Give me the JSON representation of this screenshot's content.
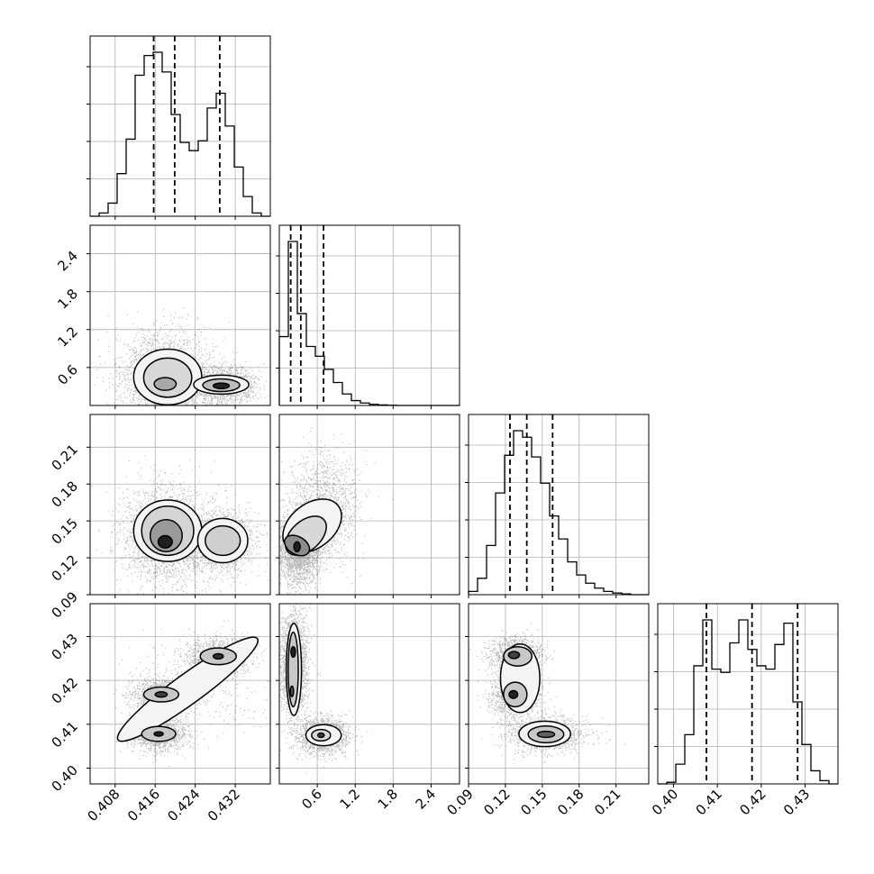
{
  "chart_data": {
    "type": "corner",
    "grid": true,
    "parameters": [
      {
        "range": [
          0.403,
          0.439
        ],
        "ticks": [
          0.408,
          0.416,
          0.424,
          0.432
        ],
        "tick_labels": [
          "0.408",
          "0.416",
          "0.424",
          "0.432"
        ],
        "hist": [
          0,
          0.02,
          0.08,
          0.26,
          0.47,
          0.86,
          0.98,
          1.0,
          0.88,
          0.62,
          0.45,
          0.4,
          0.46,
          0.66,
          0.75,
          0.55,
          0.3,
          0.12,
          0.02,
          0
        ],
        "quantiles": [
          0.4157,
          0.4199,
          0.4289
        ]
      },
      {
        "range": [
          0.0,
          2.85
        ],
        "ticks": [
          0.6,
          1.2,
          1.8,
          2.4
        ],
        "tick_labels": [
          "0.6",
          "1.2",
          "1.8",
          "2.4"
        ],
        "hist": [
          0.42,
          1.0,
          0.56,
          0.36,
          0.3,
          0.22,
          0.14,
          0.07,
          0.03,
          0.015,
          0.007,
          0.003,
          0.001,
          0,
          0,
          0,
          0,
          0,
          0,
          0
        ],
        "quantiles": [
          0.18,
          0.34,
          0.7
        ]
      },
      {
        "range": [
          0.09,
          0.2366
        ],
        "ticks": [
          0.09,
          0.12,
          0.15,
          0.18,
          0.21
        ],
        "tick_labels": [
          "0.09",
          "0.12",
          "0.15",
          "0.18",
          "0.21"
        ],
        "hist": [
          0.02,
          0.1,
          0.3,
          0.62,
          0.85,
          1.0,
          0.96,
          0.84,
          0.68,
          0.48,
          0.34,
          0.2,
          0.12,
          0.07,
          0.04,
          0.02,
          0.01,
          0.005,
          0,
          0
        ],
        "quantiles": [
          0.1237,
          0.1374,
          0.1584
        ]
      },
      {
        "range": [
          0.3964,
          0.4375
        ],
        "ticks": [
          0.4,
          0.41,
          0.42,
          0.43
        ],
        "tick_labels": [
          "0.40",
          "0.41",
          "0.42",
          "0.43"
        ],
        "hist": [
          0,
          0.01,
          0.12,
          0.3,
          0.72,
          1.0,
          0.7,
          0.68,
          0.86,
          1.0,
          0.82,
          0.72,
          0.7,
          0.85,
          0.98,
          0.5,
          0.24,
          0.08,
          0.02,
          0
        ],
        "quantiles": [
          0.4075,
          0.4179,
          0.4283
        ]
      }
    ],
    "pairs": [
      {
        "row": 1,
        "col": 0,
        "blobs": [
          {
            "cx": 0.418,
            "cy": 0.45,
            "sx": 0.0036,
            "sy": 0.3,
            "w": 1.0
          },
          {
            "cx": 0.4295,
            "cy": 0.32,
            "sx": 0.0028,
            "sy": 0.12,
            "w": 0.65
          }
        ],
        "contours": [
          {
            "cx": 0.4185,
            "cy": 0.45,
            "rx": 0.0068,
            "ry": 0.44,
            "fill": "#f4f4f4"
          },
          {
            "cx": 0.4292,
            "cy": 0.33,
            "rx": 0.0055,
            "ry": 0.15,
            "fill": "#f4f4f4"
          },
          {
            "cx": 0.4185,
            "cy": 0.44,
            "rx": 0.0048,
            "ry": 0.31,
            "fill": "#d8d8d8"
          },
          {
            "cx": 0.4292,
            "cy": 0.32,
            "rx": 0.0037,
            "ry": 0.1,
            "fill": "#bdbdbd"
          },
          {
            "cx": 0.418,
            "cy": 0.34,
            "rx": 0.0022,
            "ry": 0.1,
            "fill": "#a8a8a8"
          },
          {
            "cx": 0.4292,
            "cy": 0.31,
            "rx": 0.0016,
            "ry": 0.045,
            "fill": "#202020"
          }
        ]
      },
      {
        "row": 2,
        "col": 0,
        "blobs": [
          {
            "cx": 0.418,
            "cy": 0.138,
            "sx": 0.0036,
            "sy": 0.016,
            "w": 1.0
          },
          {
            "cx": 0.4293,
            "cy": 0.134,
            "sx": 0.0026,
            "sy": 0.011,
            "w": 0.6
          }
        ],
        "contours": [
          {
            "cx": 0.4185,
            "cy": 0.142,
            "rx": 0.0068,
            "ry": 0.025,
            "fill": "#f4f4f4"
          },
          {
            "cx": 0.4295,
            "cy": 0.134,
            "rx": 0.005,
            "ry": 0.018,
            "fill": "#f4f4f4"
          },
          {
            "cx": 0.4185,
            "cy": 0.142,
            "rx": 0.0052,
            "ry": 0.02,
            "fill": "#d4d4d4"
          },
          {
            "cx": 0.4295,
            "cy": 0.134,
            "rx": 0.0035,
            "ry": 0.012,
            "fill": "#cfcfcf"
          },
          {
            "cx": 0.4182,
            "cy": 0.138,
            "rx": 0.0032,
            "ry": 0.013,
            "fill": "#9a9a9a"
          },
          {
            "cx": 0.418,
            "cy": 0.133,
            "rx": 0.0014,
            "ry": 0.005,
            "fill": "#202020"
          }
        ]
      },
      {
        "row": 2,
        "col": 1,
        "blobs": [
          {
            "cx": 0.3,
            "cy": 0.128,
            "sx": 0.14,
            "sy": 0.012,
            "w": 1.0
          },
          {
            "cx": 0.7,
            "cy": 0.16,
            "sx": 0.22,
            "sy": 0.018,
            "w": 0.55
          }
        ],
        "contours": [
          {
            "cx": 0.52,
            "cy": 0.146,
            "rx": 0.52,
            "ry": 0.018,
            "rot": -38,
            "fill": "#f4f4f4"
          },
          {
            "cx": 0.42,
            "cy": 0.138,
            "rx": 0.38,
            "ry": 0.012,
            "rot": -42,
            "fill": "#d8d8d8"
          },
          {
            "cx": 0.28,
            "cy": 0.13,
            "rx": 0.14,
            "ry": 0.011,
            "rot": -60,
            "fill": "#8c8c8c"
          },
          {
            "cx": 0.28,
            "cy": 0.129,
            "rx": 0.05,
            "ry": 0.004,
            "fill": "#202020"
          }
        ]
      },
      {
        "row": 3,
        "col": 0,
        "blobs": [
          {
            "cx": 0.4166,
            "cy": 0.4078,
            "sx": 0.0022,
            "sy": 0.0016,
            "w": 0.8
          },
          {
            "cx": 0.4172,
            "cy": 0.4168,
            "sx": 0.0024,
            "sy": 0.0016,
            "w": 0.8
          },
          {
            "cx": 0.4285,
            "cy": 0.4255,
            "sx": 0.0026,
            "sy": 0.0018,
            "w": 0.75
          },
          {
            "cx": 0.424,
            "cy": 0.419,
            "sx": 0.006,
            "sy": 0.0048,
            "w": 0.25
          }
        ],
        "contours": [
          {
            "cx": 0.4225,
            "cy": 0.418,
            "rx": 0.0172,
            "ry": 0.0034,
            "rot": -36,
            "fill": "#f4f4f4"
          },
          {
            "cx": 0.4167,
            "cy": 0.4078,
            "rx": 0.0034,
            "ry": 0.0017,
            "fill": "#c8c8c8"
          },
          {
            "cx": 0.4172,
            "cy": 0.4168,
            "rx": 0.0035,
            "ry": 0.0017,
            "fill": "#c8c8c8"
          },
          {
            "cx": 0.4286,
            "cy": 0.4255,
            "rx": 0.0036,
            "ry": 0.0019,
            "fill": "#c8c8c8"
          },
          {
            "cx": 0.4167,
            "cy": 0.4078,
            "rx": 0.0009,
            "ry": 0.0005,
            "fill": "#202020"
          },
          {
            "cx": 0.4172,
            "cy": 0.4168,
            "rx": 0.0012,
            "ry": 0.0006,
            "fill": "#404040"
          },
          {
            "cx": 0.4286,
            "cy": 0.4255,
            "rx": 0.001,
            "ry": 0.0006,
            "fill": "#303030"
          }
        ]
      },
      {
        "row": 3,
        "col": 1,
        "blobs": [
          {
            "cx": 0.22,
            "cy": 0.424,
            "sx": 0.09,
            "sy": 0.0048,
            "w": 1.0
          },
          {
            "cx": 0.68,
            "cy": 0.4075,
            "sx": 0.16,
            "sy": 0.0016,
            "w": 0.75
          }
        ],
        "contours": [
          {
            "cx": 0.23,
            "cy": 0.4225,
            "rx": 0.12,
            "ry": 0.0105,
            "fill": "#f4f4f4"
          },
          {
            "cx": 0.7,
            "cy": 0.4075,
            "rx": 0.28,
            "ry": 0.0024,
            "fill": "#f4f4f4"
          },
          {
            "cx": 0.22,
            "cy": 0.4225,
            "rx": 0.08,
            "ry": 0.0085,
            "fill": "#c8c8c8"
          },
          {
            "cx": 0.66,
            "cy": 0.4075,
            "rx": 0.15,
            "ry": 0.0013,
            "fill": "#d8d8d8"
          },
          {
            "cx": 0.22,
            "cy": 0.4265,
            "rx": 0.035,
            "ry": 0.0012,
            "fill": "#202020"
          },
          {
            "cx": 0.2,
            "cy": 0.4175,
            "rx": 0.025,
            "ry": 0.0012,
            "fill": "#505050"
          },
          {
            "cx": 0.66,
            "cy": 0.4075,
            "rx": 0.05,
            "ry": 0.0005,
            "fill": "#404040"
          }
        ]
      },
      {
        "row": 3,
        "col": 2,
        "blobs": [
          {
            "cx": 0.128,
            "cy": 0.4258,
            "sx": 0.008,
            "sy": 0.0017,
            "w": 0.8
          },
          {
            "cx": 0.128,
            "cy": 0.4168,
            "sx": 0.008,
            "sy": 0.0019,
            "w": 0.9
          },
          {
            "cx": 0.153,
            "cy": 0.4077,
            "sx": 0.013,
            "sy": 0.0016,
            "w": 0.8
          }
        ],
        "contours": [
          {
            "cx": 0.132,
            "cy": 0.4205,
            "rx": 0.016,
            "ry": 0.0078,
            "fill": "#f4f4f4"
          },
          {
            "cx": 0.152,
            "cy": 0.4078,
            "rx": 0.021,
            "ry": 0.0029,
            "fill": "#f4f4f4"
          },
          {
            "cx": 0.13,
            "cy": 0.4255,
            "rx": 0.0115,
            "ry": 0.0022,
            "fill": "#c8c8c8"
          },
          {
            "cx": 0.128,
            "cy": 0.4168,
            "rx": 0.0095,
            "ry": 0.0028,
            "fill": "#c8c8c8"
          },
          {
            "cx": 0.153,
            "cy": 0.4077,
            "rx": 0.0145,
            "ry": 0.0019,
            "fill": "#c8c8c8"
          },
          {
            "cx": 0.127,
            "cy": 0.4258,
            "rx": 0.0045,
            "ry": 0.0008,
            "fill": "#404040"
          },
          {
            "cx": 0.1265,
            "cy": 0.4168,
            "rx": 0.0035,
            "ry": 0.0009,
            "fill": "#202020"
          },
          {
            "cx": 0.153,
            "cy": 0.4077,
            "rx": 0.007,
            "ry": 0.0007,
            "fill": "#606060"
          }
        ]
      }
    ]
  }
}
